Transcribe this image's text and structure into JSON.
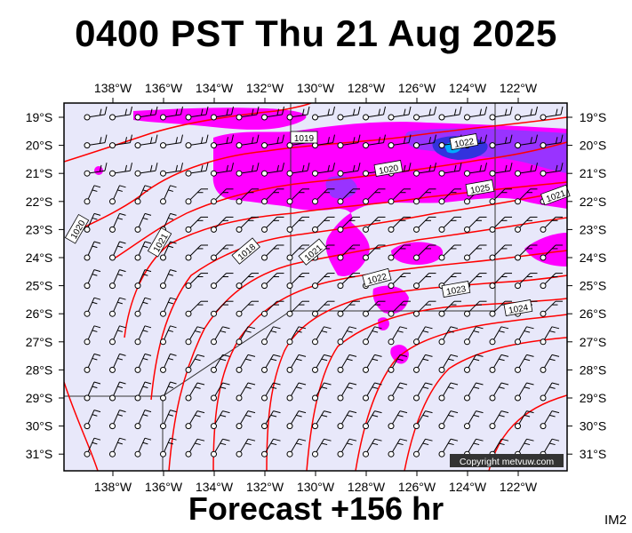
{
  "title": "0400 PST Thu 21 Aug 2025",
  "footer": "Forecast +156 hr",
  "corner_label": "IM2",
  "copyright": "Copyright metvuw.com",
  "lon_labels": [
    "138°W",
    "136°W",
    "134°W",
    "132°W",
    "130°W",
    "128°W",
    "126°W",
    "124°W",
    "122°W"
  ],
  "lat_labels": [
    "19°S",
    "20°S",
    "21°S",
    "22°S",
    "23°S",
    "24°S",
    "25°S",
    "26°S",
    "27°S",
    "28°S",
    "29°S",
    "30°S",
    "31°S"
  ],
  "isobar_labels": [
    "1019",
    "1020",
    "1021",
    "1018",
    "1020",
    "1021",
    "1022",
    "1023",
    "1024",
    "1025",
    "1021",
    "1022"
  ],
  "colors": {
    "background": "#e8e8fa",
    "isobar": "#ff0000",
    "rain_light": "#ff00ff",
    "rain_medium": "#9933ff",
    "rain_heavy": "#3333dd",
    "rain_peak": "#00aaff"
  },
  "icons": [
    "wind-barb-icon",
    "station-circle-icon"
  ]
}
